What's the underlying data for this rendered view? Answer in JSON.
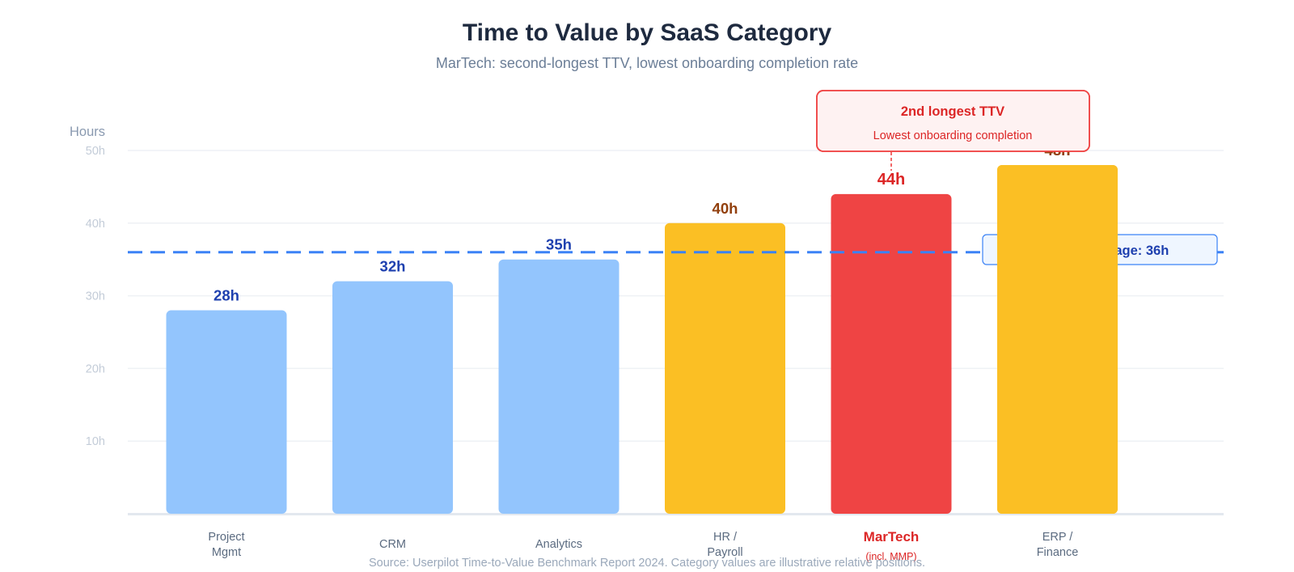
{
  "chart_data": {
    "type": "bar",
    "title": "Time to Value by SaaS Category",
    "subtitle": "MarTech: second-longest TTV, lowest onboarding completion rate",
    "ylabel": "Hours",
    "ylim": [
      0,
      50
    ],
    "yticks": [
      {
        "value": 10,
        "label": "10h"
      },
      {
        "value": 20,
        "label": "20h"
      },
      {
        "value": 30,
        "label": "30h"
      },
      {
        "value": 40,
        "label": "40h"
      },
      {
        "value": 50,
        "label": "50h"
      }
    ],
    "grid": true,
    "categories": [
      {
        "lines": [
          "Project",
          "Mgmt"
        ],
        "value": 28,
        "value_label": "28h",
        "fill": "#93c5fd",
        "label_color": "#1e40af",
        "axis_color": "#5b6b80"
      },
      {
        "lines": [
          "CRM"
        ],
        "value": 32,
        "value_label": "32h",
        "fill": "#93c5fd",
        "label_color": "#1e40af",
        "axis_color": "#5b6b80"
      },
      {
        "lines": [
          "Analytics"
        ],
        "value": 35,
        "value_label": "35h",
        "fill": "#93c5fd",
        "label_color": "#1e40af",
        "axis_color": "#5b6b80"
      },
      {
        "lines": [
          "HR /",
          "Payroll"
        ],
        "value": 40,
        "value_label": "40h",
        "fill": "#fbbf24",
        "label_color": "#92400e",
        "axis_color": "#5b6b80"
      },
      {
        "lines": [
          "MarTech"
        ],
        "sublabel": "(incl. MMP)",
        "value": 44,
        "value_label": "44h",
        "fill": "#ef4444",
        "label_color": "#dc2626",
        "axis_color": "#dc2626",
        "highlight": true
      },
      {
        "lines": [
          "ERP /",
          "Finance"
        ],
        "value": 48,
        "value_label": "48h",
        "fill": "#fbbf24",
        "label_color": "#92400e",
        "axis_color": "#5b6b80"
      }
    ],
    "average": {
      "value": 36,
      "label": "Industry average: 36h",
      "color": "#3b82f6",
      "text_color": "#1e40af",
      "box_fill": "#eff6ff"
    },
    "callout": {
      "target": "MarTech",
      "title": "2nd longest TTV",
      "text": "Lowest onboarding completion",
      "color": "#dc2626",
      "fill": "#fef2f2",
      "border": "#ef4444"
    },
    "source": "Source: Userpilot Time-to-Value Benchmark Report 2024. Category values are illustrative relative positions."
  }
}
